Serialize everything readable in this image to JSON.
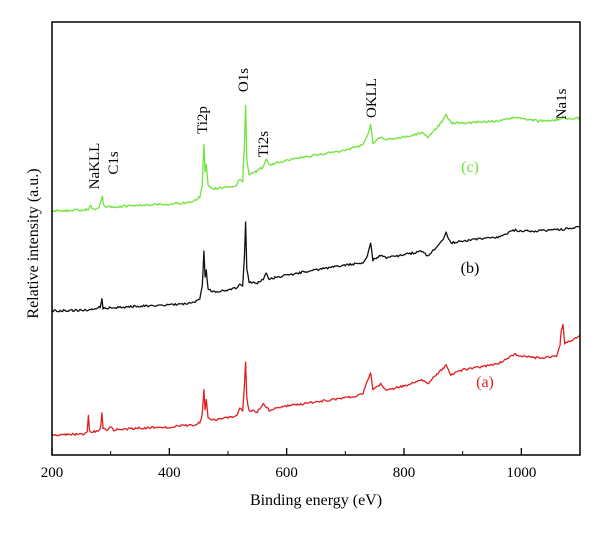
{
  "chart_data": {
    "type": "line",
    "title": "",
    "xlabel": "Binding energy (eV)",
    "ylabel": "Relative intensity (a.u.)",
    "xlim": [
      200,
      1100
    ],
    "xticks": [
      200,
      400,
      600,
      800,
      1000
    ],
    "y_tick_labels_shown": false,
    "grid": false,
    "peak_labels": [
      {
        "text": "NaKLL",
        "x": 265
      },
      {
        "text": "C1s",
        "x": 285
      },
      {
        "text": "Ti2p",
        "x": 459
      },
      {
        "text": "O1s",
        "x": 530
      },
      {
        "text": "Ti2s",
        "x": 565
      },
      {
        "text": "OKLL",
        "x": 743
      },
      {
        "text": "Na1s",
        "x": 1071
      }
    ],
    "series": [
      {
        "name": "(a)",
        "color": "#e11f1f",
        "points": [
          [
            200,
            5
          ],
          [
            255,
            6
          ],
          [
            260,
            8
          ],
          [
            262,
            25
          ],
          [
            264,
            10
          ],
          [
            268,
            8
          ],
          [
            280,
            9
          ],
          [
            283,
            14
          ],
          [
            285,
            27
          ],
          [
            287,
            12
          ],
          [
            295,
            10
          ],
          [
            300,
            13
          ],
          [
            305,
            10
          ],
          [
            350,
            12
          ],
          [
            400,
            13
          ],
          [
            440,
            15
          ],
          [
            452,
            17
          ],
          [
            456,
            25
          ],
          [
            459,
            50
          ],
          [
            461,
            30
          ],
          [
            463,
            40
          ],
          [
            466,
            22
          ],
          [
            475,
            20
          ],
          [
            500,
            22
          ],
          [
            515,
            24
          ],
          [
            520,
            32
          ],
          [
            525,
            28
          ],
          [
            528,
            55
          ],
          [
            530,
            78
          ],
          [
            532,
            42
          ],
          [
            536,
            30
          ],
          [
            550,
            28
          ],
          [
            560,
            36
          ],
          [
            565,
            33
          ],
          [
            570,
            30
          ],
          [
            600,
            34
          ],
          [
            650,
            38
          ],
          [
            700,
            42
          ],
          [
            730,
            46
          ],
          [
            738,
            60
          ],
          [
            743,
            68
          ],
          [
            747,
            50
          ],
          [
            760,
            56
          ],
          [
            770,
            50
          ],
          [
            800,
            54
          ],
          [
            830,
            60
          ],
          [
            840,
            56
          ],
          [
            860,
            68
          ],
          [
            872,
            75
          ],
          [
            880,
            65
          ],
          [
            900,
            70
          ],
          [
            960,
            76
          ],
          [
            990,
            86
          ],
          [
            1000,
            84
          ],
          [
            1030,
            82
          ],
          [
            1060,
            84
          ],
          [
            1066,
            94
          ],
          [
            1068,
            110
          ],
          [
            1071,
            115
          ],
          [
            1074,
            96
          ],
          [
            1080,
            98
          ],
          [
            1100,
            104
          ]
        ]
      },
      {
        "name": "(b)",
        "color": "#111111",
        "points": [
          [
            200,
            4
          ],
          [
            260,
            5
          ],
          [
            275,
            6
          ],
          [
            282,
            8
          ],
          [
            285,
            16
          ],
          [
            287,
            7
          ],
          [
            300,
            7
          ],
          [
            350,
            9
          ],
          [
            400,
            10
          ],
          [
            440,
            12
          ],
          [
            452,
            16
          ],
          [
            456,
            28
          ],
          [
            459,
            64
          ],
          [
            461,
            38
          ],
          [
            463,
            44
          ],
          [
            466,
            26
          ],
          [
            475,
            23
          ],
          [
            500,
            25
          ],
          [
            515,
            27
          ],
          [
            520,
            32
          ],
          [
            525,
            29
          ],
          [
            528,
            58
          ],
          [
            530,
            92
          ],
          [
            532,
            46
          ],
          [
            536,
            33
          ],
          [
            550,
            32
          ],
          [
            560,
            36
          ],
          [
            565,
            42
          ],
          [
            570,
            36
          ],
          [
            600,
            40
          ],
          [
            650,
            45
          ],
          [
            700,
            50
          ],
          [
            730,
            52
          ],
          [
            738,
            60
          ],
          [
            743,
            72
          ],
          [
            747,
            55
          ],
          [
            760,
            60
          ],
          [
            770,
            57
          ],
          [
            800,
            60
          ],
          [
            830,
            64
          ],
          [
            840,
            59
          ],
          [
            860,
            70
          ],
          [
            872,
            82
          ],
          [
            880,
            72
          ],
          [
            900,
            74
          ],
          [
            960,
            78
          ],
          [
            990,
            85
          ],
          [
            1000,
            84
          ],
          [
            1030,
            84
          ],
          [
            1060,
            85
          ],
          [
            1100,
            88
          ]
        ]
      },
      {
        "name": "(c)",
        "color": "#6fe33a",
        "points": [
          [
            200,
            4
          ],
          [
            255,
            5
          ],
          [
            262,
            6
          ],
          [
            266,
            9
          ],
          [
            270,
            6
          ],
          [
            280,
            7
          ],
          [
            283,
            12
          ],
          [
            286,
            18
          ],
          [
            288,
            9
          ],
          [
            300,
            8
          ],
          [
            350,
            10
          ],
          [
            400,
            11
          ],
          [
            440,
            13
          ],
          [
            452,
            18
          ],
          [
            456,
            30
          ],
          [
            459,
            70
          ],
          [
            461,
            42
          ],
          [
            463,
            50
          ],
          [
            466,
            30
          ],
          [
            475,
            26
          ],
          [
            500,
            28
          ],
          [
            515,
            30
          ],
          [
            520,
            36
          ],
          [
            525,
            33
          ],
          [
            528,
            68
          ],
          [
            530,
            110
          ],
          [
            532,
            55
          ],
          [
            536,
            40
          ],
          [
            550,
            44
          ],
          [
            560,
            48
          ],
          [
            565,
            56
          ],
          [
            570,
            50
          ],
          [
            600,
            55
          ],
          [
            650,
            60
          ],
          [
            700,
            65
          ],
          [
            730,
            70
          ],
          [
            738,
            80
          ],
          [
            743,
            90
          ],
          [
            747,
            72
          ],
          [
            760,
            78
          ],
          [
            770,
            75
          ],
          [
            800,
            78
          ],
          [
            830,
            82
          ],
          [
            840,
            78
          ],
          [
            860,
            90
          ],
          [
            872,
            100
          ],
          [
            880,
            92
          ],
          [
            900,
            92
          ],
          [
            960,
            94
          ],
          [
            990,
            98
          ],
          [
            1000,
            96
          ],
          [
            1030,
            94
          ],
          [
            1060,
            95
          ],
          [
            1071,
            98
          ],
          [
            1075,
            96
          ],
          [
            1100,
            97
          ]
        ]
      }
    ]
  }
}
